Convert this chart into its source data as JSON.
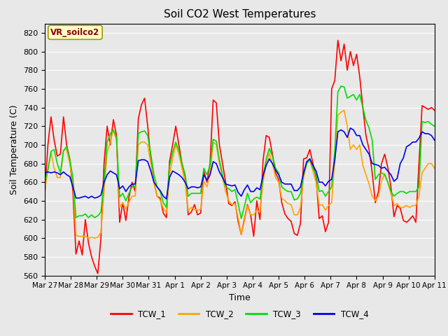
{
  "title": "Soil CO2 West Temperatures",
  "xlabel": "Time",
  "ylabel": "Soil Temperature (C)",
  "ylim": [
    560,
    830
  ],
  "label_box_text": "VR_soilco2",
  "series_labels": [
    "TCW_1",
    "TCW_2",
    "TCW_3",
    "TCW_4"
  ],
  "series_colors": [
    "#ff0000",
    "#ffa500",
    "#00dd00",
    "#0000ee"
  ],
  "xtick_labels": [
    "Mar 27",
    "Mar 28",
    "Mar 29",
    "Mar 30",
    "Mar 31",
    "Apr 1",
    "Apr 2",
    "Apr 3",
    "Apr 4",
    "Apr 5",
    "Apr 6",
    "Apr 7",
    "Apr 8",
    "Apr 9",
    "Apr 10",
    "Apr 11"
  ],
  "plot_bg_color": "#e8e8e8",
  "fig_bg_color": "#e8e8e8",
  "tcw1": [
    648,
    700,
    730,
    705,
    688,
    690,
    730,
    700,
    685,
    650,
    583,
    597,
    582,
    620,
    595,
    580,
    570,
    562,
    600,
    680,
    720,
    700,
    727,
    710,
    617,
    638,
    619,
    644,
    660,
    650,
    728,
    743,
    750,
    720,
    685,
    660,
    645,
    643,
    627,
    622,
    682,
    700,
    720,
    700,
    680,
    666,
    625,
    628,
    636,
    625,
    627,
    672,
    660,
    680,
    748,
    745,
    700,
    680,
    660,
    637,
    635,
    639,
    618,
    604,
    620,
    636,
    625,
    602,
    640,
    620,
    683,
    710,
    708,
    690,
    670,
    663,
    638,
    626,
    621,
    618,
    605,
    603,
    616,
    685,
    686,
    695,
    680,
    665,
    621,
    624,
    607,
    617,
    760,
    769,
    812,
    790,
    808,
    780,
    800,
    785,
    797,
    773,
    740,
    710,
    695,
    670,
    638,
    650,
    680,
    690,
    676,
    655,
    623,
    635,
    632,
    619,
    617,
    620,
    624,
    617,
    680,
    742,
    740,
    738,
    740,
    737
  ],
  "tcw2": [
    650,
    675,
    692,
    675,
    665,
    665,
    694,
    695,
    680,
    660,
    603,
    602,
    602,
    602,
    600,
    601,
    600,
    601,
    606,
    650,
    692,
    703,
    716,
    705,
    633,
    638,
    631,
    639,
    645,
    645,
    700,
    703,
    703,
    700,
    680,
    660,
    645,
    641,
    632,
    627,
    668,
    685,
    700,
    690,
    675,
    660,
    630,
    633,
    631,
    630,
    631,
    661,
    655,
    668,
    703,
    700,
    680,
    665,
    650,
    640,
    636,
    637,
    622,
    604,
    618,
    635,
    625,
    625,
    630,
    628,
    660,
    680,
    691,
    680,
    665,
    660,
    643,
    640,
    637,
    636,
    625,
    625,
    633,
    665,
    680,
    683,
    672,
    660,
    635,
    636,
    630,
    635,
    638,
    683,
    732,
    735,
    737,
    720,
    695,
    700,
    695,
    700,
    678,
    668,
    658,
    645,
    640,
    645,
    661,
    669,
    660,
    648,
    635,
    637,
    633,
    633,
    635,
    633,
    635,
    635,
    645,
    670,
    675,
    680,
    680,
    675
  ],
  "tcw3": [
    660,
    673,
    693,
    695,
    680,
    670,
    694,
    698,
    685,
    665,
    622,
    624,
    624,
    626,
    622,
    625,
    622,
    624,
    628,
    660,
    703,
    712,
    716,
    708,
    644,
    648,
    640,
    648,
    655,
    655,
    712,
    714,
    715,
    710,
    690,
    668,
    655,
    650,
    638,
    633,
    677,
    692,
    703,
    694,
    680,
    668,
    645,
    648,
    648,
    648,
    648,
    675,
    668,
    678,
    706,
    704,
    684,
    668,
    655,
    653,
    650,
    652,
    637,
    621,
    634,
    648,
    638,
    642,
    644,
    642,
    666,
    685,
    696,
    688,
    675,
    670,
    655,
    652,
    650,
    650,
    641,
    642,
    648,
    668,
    680,
    685,
    675,
    668,
    650,
    651,
    645,
    650,
    655,
    694,
    757,
    763,
    762,
    750,
    752,
    754,
    748,
    754,
    740,
    726,
    718,
    705,
    663,
    668,
    670,
    668,
    660,
    650,
    645,
    648,
    650,
    650,
    648,
    650,
    650,
    650,
    655,
    725,
    724,
    725,
    722,
    720
  ],
  "tcw4": [
    670,
    671,
    670,
    671,
    670,
    668,
    671,
    668,
    666,
    655,
    643,
    643,
    644,
    645,
    643,
    645,
    643,
    644,
    646,
    660,
    668,
    672,
    670,
    668,
    653,
    656,
    650,
    655,
    658,
    658,
    683,
    684,
    684,
    682,
    672,
    660,
    655,
    651,
    645,
    642,
    665,
    672,
    670,
    668,
    665,
    660,
    653,
    655,
    655,
    654,
    655,
    668,
    662,
    668,
    682,
    680,
    671,
    665,
    658,
    657,
    656,
    657,
    649,
    645,
    652,
    657,
    650,
    650,
    654,
    652,
    667,
    678,
    685,
    680,
    673,
    668,
    660,
    658,
    658,
    658,
    651,
    651,
    655,
    670,
    682,
    685,
    678,
    672,
    660,
    660,
    656,
    661,
    663,
    684,
    714,
    716,
    714,
    708,
    718,
    716,
    710,
    710,
    700,
    695,
    690,
    680,
    679,
    678,
    675,
    676,
    672,
    668,
    661,
    664,
    680,
    686,
    698,
    700,
    703,
    703,
    707,
    714,
    712,
    712,
    710,
    705
  ]
}
